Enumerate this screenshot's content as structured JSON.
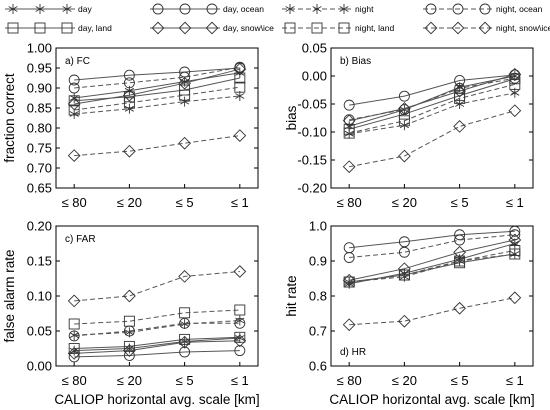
{
  "legend": [
    {
      "id": "day",
      "label": "day",
      "style": "solid",
      "marker": "star"
    },
    {
      "id": "day_ocean",
      "label": "day, ocean",
      "style": "solid",
      "marker": "circle"
    },
    {
      "id": "day_land",
      "label": "day, land",
      "style": "solid",
      "marker": "square"
    },
    {
      "id": "day_snow",
      "label": "day, snow\\ice",
      "style": "solid",
      "marker": "diamond"
    },
    {
      "id": "night",
      "label": "night",
      "style": "dashed",
      "marker": "star"
    },
    {
      "id": "night_ocean",
      "label": "night, ocean",
      "style": "dashed",
      "marker": "circle"
    },
    {
      "id": "night_land",
      "label": "night, land",
      "style": "dashed",
      "marker": "square"
    },
    {
      "id": "night_snow",
      "label": "night, snow\\ice",
      "style": "dashed",
      "marker": "diamond"
    }
  ],
  "categories": [
    "≤ 80",
    "≤ 20",
    "≤ 5",
    "≤ 1"
  ],
  "xlabel": "CALIOP horizontal avg. scale [km]",
  "colors": {
    "line": "#555555",
    "marker": "#333333",
    "axis": "#000000"
  },
  "chart_data": [
    {
      "type": "line",
      "panel_label": "a) FC",
      "ylabel": "fraction correct",
      "ylim": [
        0.65,
        1.0
      ],
      "yticks": [
        0.65,
        0.7,
        0.75,
        0.8,
        0.85,
        0.9,
        0.95,
        1.0
      ],
      "tick_format": "2",
      "series": [
        {
          "ref": "day",
          "values": [
            0.875,
            0.893,
            0.916,
            0.938
          ]
        },
        {
          "ref": "day_ocean",
          "values": [
            0.92,
            0.932,
            0.94,
            0.95
          ]
        },
        {
          "ref": "day_land",
          "values": [
            0.868,
            0.878,
            0.895,
            0.925
          ]
        },
        {
          "ref": "day_snow",
          "values": [
            0.86,
            0.882,
            0.912,
            0.947
          ]
        },
        {
          "ref": "night",
          "values": [
            0.835,
            0.848,
            0.866,
            0.88
          ]
        },
        {
          "ref": "night_ocean",
          "values": [
            0.9,
            0.913,
            0.927,
            0.952
          ]
        },
        {
          "ref": "night_land",
          "values": [
            0.845,
            0.863,
            0.882,
            0.902
          ]
        },
        {
          "ref": "night_snow",
          "values": [
            0.731,
            0.742,
            0.762,
            0.781
          ]
        }
      ]
    },
    {
      "type": "line",
      "panel_label": "b) Bias",
      "ylabel": "bias",
      "ylim": [
        -0.2,
        0.05
      ],
      "yticks": [
        -0.2,
        -0.15,
        -0.1,
        -0.05,
        0.0,
        0.05
      ],
      "tick_format": "2",
      "series": [
        {
          "ref": "day",
          "values": [
            -0.09,
            -0.06,
            -0.02,
            0.0
          ]
        },
        {
          "ref": "day_ocean",
          "values": [
            -0.052,
            -0.036,
            -0.008,
            0.002
          ]
        },
        {
          "ref": "day_land",
          "values": [
            -0.095,
            -0.068,
            -0.035,
            -0.005
          ]
        },
        {
          "ref": "day_snow",
          "values": [
            -0.08,
            -0.058,
            -0.027,
            0.003
          ]
        },
        {
          "ref": "night",
          "values": [
            -0.103,
            -0.088,
            -0.05,
            -0.03
          ]
        },
        {
          "ref": "night_ocean",
          "values": [
            -0.078,
            -0.06,
            -0.022,
            -0.004
          ]
        },
        {
          "ref": "night_land",
          "values": [
            -0.102,
            -0.08,
            -0.04,
            -0.015
          ]
        },
        {
          "ref": "night_snow",
          "values": [
            -0.162,
            -0.143,
            -0.09,
            -0.062
          ]
        }
      ]
    },
    {
      "type": "line",
      "panel_label": "c) FAR",
      "ylabel": "false alarm rate",
      "ylim": [
        0.0,
        0.2
      ],
      "yticks": [
        0.0,
        0.05,
        0.1,
        0.15,
        0.2
      ],
      "tick_format": "2",
      "series": [
        {
          "ref": "day",
          "values": [
            0.022,
            0.025,
            0.035,
            0.04
          ]
        },
        {
          "ref": "day_ocean",
          "values": [
            0.013,
            0.015,
            0.02,
            0.022
          ]
        },
        {
          "ref": "day_land",
          "values": [
            0.025,
            0.028,
            0.038,
            0.041
          ]
        },
        {
          "ref": "day_snow",
          "values": [
            0.018,
            0.022,
            0.034,
            0.036
          ]
        },
        {
          "ref": "night",
          "values": [
            0.044,
            0.048,
            0.06,
            0.065
          ]
        },
        {
          "ref": "night_ocean",
          "values": [
            0.043,
            0.05,
            0.061,
            0.061
          ]
        },
        {
          "ref": "night_land",
          "values": [
            0.06,
            0.064,
            0.076,
            0.08
          ]
        },
        {
          "ref": "night_snow",
          "values": [
            0.093,
            0.1,
            0.128,
            0.135
          ]
        }
      ]
    },
    {
      "type": "line",
      "panel_label": "d) HR",
      "ylabel": "hit rate",
      "ylim": [
        0.6,
        1.0
      ],
      "yticks": [
        0.6,
        0.7,
        0.8,
        0.9,
        1.0
      ],
      "tick_format": "1",
      "series": [
        {
          "ref": "day",
          "values": [
            0.835,
            0.865,
            0.905,
            0.95
          ]
        },
        {
          "ref": "day_ocean",
          "values": [
            0.938,
            0.955,
            0.975,
            0.985
          ]
        },
        {
          "ref": "day_land",
          "values": [
            0.84,
            0.86,
            0.895,
            0.92
          ]
        },
        {
          "ref": "day_snow",
          "values": [
            0.845,
            0.878,
            0.925,
            0.96
          ]
        },
        {
          "ref": "night",
          "values": [
            0.84,
            0.855,
            0.9,
            0.92
          ]
        },
        {
          "ref": "night_ocean",
          "values": [
            0.91,
            0.925,
            0.96,
            0.975
          ]
        },
        {
          "ref": "night_land",
          "values": [
            0.84,
            0.86,
            0.9,
            0.93
          ]
        },
        {
          "ref": "night_snow",
          "values": [
            0.718,
            0.728,
            0.765,
            0.795
          ]
        }
      ]
    }
  ]
}
